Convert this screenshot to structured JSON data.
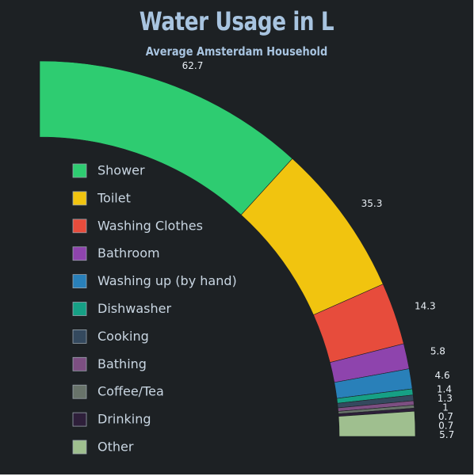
{
  "chart_data": {
    "type": "pie",
    "variant": "quarter-donut",
    "title": "Water Usage in L",
    "subtitle": "Average Amsterdam Household",
    "background": "#1d2124",
    "title_color": "#a8c4e0",
    "legend_placement": "left",
    "slices": [
      {
        "label": "Shower",
        "value": 62.7,
        "color": "#2ecc71"
      },
      {
        "label": "Toilet",
        "value": 35.3,
        "color": "#f1c40f"
      },
      {
        "label": "Washing Clothes",
        "value": 14.3,
        "color": "#e74c3c"
      },
      {
        "label": "Bathroom",
        "value": 5.8,
        "color": "#8e44ad"
      },
      {
        "label": "Washing up (by hand)",
        "value": 4.6,
        "color": "#2980b9"
      },
      {
        "label": "Dishwasher",
        "value": 1.4,
        "color": "#16a085"
      },
      {
        "label": "Cooking",
        "value": 1.3,
        "color": "#34495e"
      },
      {
        "label": "Bathing",
        "value": 1,
        "color": "#7d4f82"
      },
      {
        "label": "Coffee/Tea",
        "value": 0.7,
        "color": "#68736a"
      },
      {
        "label": "Drinking",
        "value": 0.7,
        "color": "#2e1f3a"
      },
      {
        "label": "Other",
        "value": 5.7,
        "color": "#9fbf8f"
      }
    ]
  }
}
